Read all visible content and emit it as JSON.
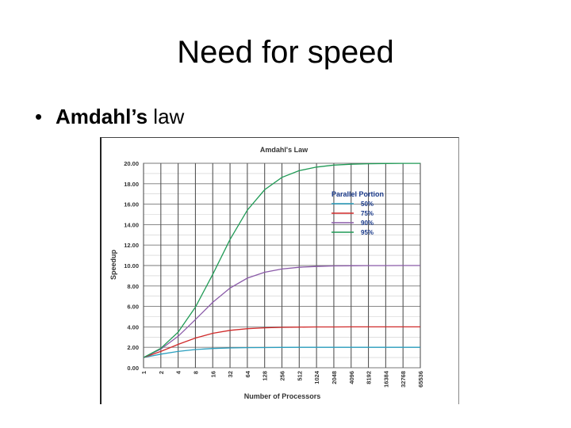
{
  "slide": {
    "title": "Need for speed",
    "bullet_bold": "Amdahl’s",
    "bullet_rest": " law"
  },
  "chart_data": {
    "type": "line",
    "title": "Amdahl's Law",
    "xlabel": "Number of Processors",
    "ylabel": "Speedup",
    "x": [
      "1",
      "2",
      "4",
      "8",
      "16",
      "32",
      "64",
      "128",
      "256",
      "512",
      "1024",
      "2048",
      "4096",
      "8192",
      "16384",
      "32768",
      "65536"
    ],
    "y_ticks": [
      "0.00",
      "2.00",
      "4.00",
      "6.00",
      "8.00",
      "10.00",
      "12.00",
      "14.00",
      "16.00",
      "18.00",
      "20.00"
    ],
    "ylim": [
      0,
      20
    ],
    "grid": true,
    "legend": {
      "title": "Parallel Portion",
      "placement": "upper-right"
    },
    "series": [
      {
        "name": "50%",
        "color": "#2a9fbf",
        "values": [
          1.0,
          1.33,
          1.6,
          1.78,
          1.88,
          1.94,
          1.97,
          1.98,
          1.99,
          2.0,
          2.0,
          2.0,
          2.0,
          2.0,
          2.0,
          2.0,
          2.0
        ]
      },
      {
        "name": "75%",
        "color": "#d02a2a",
        "values": [
          1.0,
          1.6,
          2.29,
          2.91,
          3.37,
          3.66,
          3.82,
          3.91,
          3.95,
          3.98,
          3.99,
          3.99,
          4.0,
          4.0,
          4.0,
          4.0,
          4.0
        ]
      },
      {
        "name": "90%",
        "color": "#8a5aa8",
        "values": [
          1.0,
          1.82,
          3.08,
          4.71,
          6.4,
          7.8,
          8.77,
          9.34,
          9.66,
          9.83,
          9.91,
          9.96,
          9.98,
          9.99,
          9.99,
          10.0,
          10.0
        ]
      },
      {
        "name": "95%",
        "color": "#1f9a55",
        "values": [
          1.0,
          1.9,
          3.48,
          5.93,
          9.14,
          12.55,
          15.42,
          17.41,
          18.62,
          19.28,
          19.63,
          19.82,
          19.91,
          19.95,
          19.98,
          19.99,
          19.99
        ]
      }
    ]
  }
}
